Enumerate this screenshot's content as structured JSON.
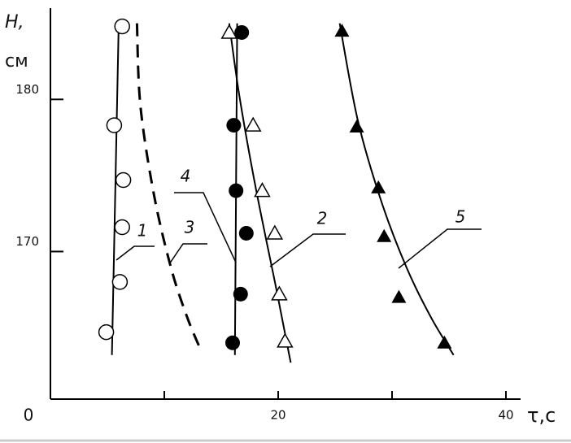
{
  "chart_data": {
    "type": "scatter-curves",
    "y_label": "H,",
    "y_unit": "см",
    "x_label": "τ,с",
    "origin_label": "0",
    "xlim": [
      0,
      40
    ],
    "ylim": [
      160.3,
      186
    ],
    "xticks": [
      0,
      20,
      40
    ],
    "xminor_ticks": [
      10,
      30
    ],
    "yticks": [
      170,
      180
    ],
    "series": [
      {
        "name": "1",
        "marker": "open-circle",
        "x": [
          6.3,
          5.6,
          6.4,
          6.3,
          6.1,
          4.9
        ],
        "values": [
          184.8,
          178.3,
          174.7,
          171.6,
          168.0,
          164.7
        ],
        "curve_style": "solid",
        "curve_x": [
          6.0,
          5.4
        ],
        "curve_values": [
          185.1,
          163.2
        ]
      },
      {
        "name": "2",
        "marker": "open-triangle",
        "x": [
          15.7,
          17.8,
          18.6,
          19.7,
          20.1,
          20.6
        ],
        "values": [
          184.4,
          178.3,
          174.0,
          171.2,
          167.2,
          164.1
        ],
        "curve_style": "solid",
        "curve_x": [
          15.7,
          16.6,
          18.0,
          19.9,
          21.1
        ],
        "curve_values": [
          185.0,
          180.2,
          174.3,
          167.3,
          162.7
        ]
      },
      {
        "name": "3",
        "curve_style": "dashed",
        "curve_x": [
          7.6,
          7.9,
          9.1,
          10.6,
          12.0,
          13.1
        ],
        "curve_values": [
          185.0,
          179.6,
          173.7,
          168.9,
          165.7,
          163.7
        ]
      },
      {
        "name": "4",
        "marker": "filled-circle",
        "x": [
          16.8,
          16.1,
          16.3,
          17.2,
          16.7,
          16.0
        ],
        "values": [
          184.4,
          178.3,
          174.0,
          171.2,
          167.2,
          164.0
        ],
        "curve_style": "solid",
        "curve_x": [
          16.4,
          16.2
        ],
        "curve_values": [
          185.0,
          163.2
        ]
      },
      {
        "name": "5",
        "marker": "filled-triangle",
        "x": [
          25.6,
          26.9,
          28.8,
          29.3,
          30.6,
          34.6
        ],
        "values": [
          184.5,
          178.2,
          174.2,
          171.0,
          167.0,
          164.0
        ],
        "curve_style": "solid",
        "curve_x": [
          25.4,
          27.0,
          29.1,
          31.3,
          33.4,
          35.4
        ],
        "curve_values": [
          185.0,
          178.6,
          173.2,
          168.9,
          165.7,
          163.2
        ]
      }
    ]
  }
}
